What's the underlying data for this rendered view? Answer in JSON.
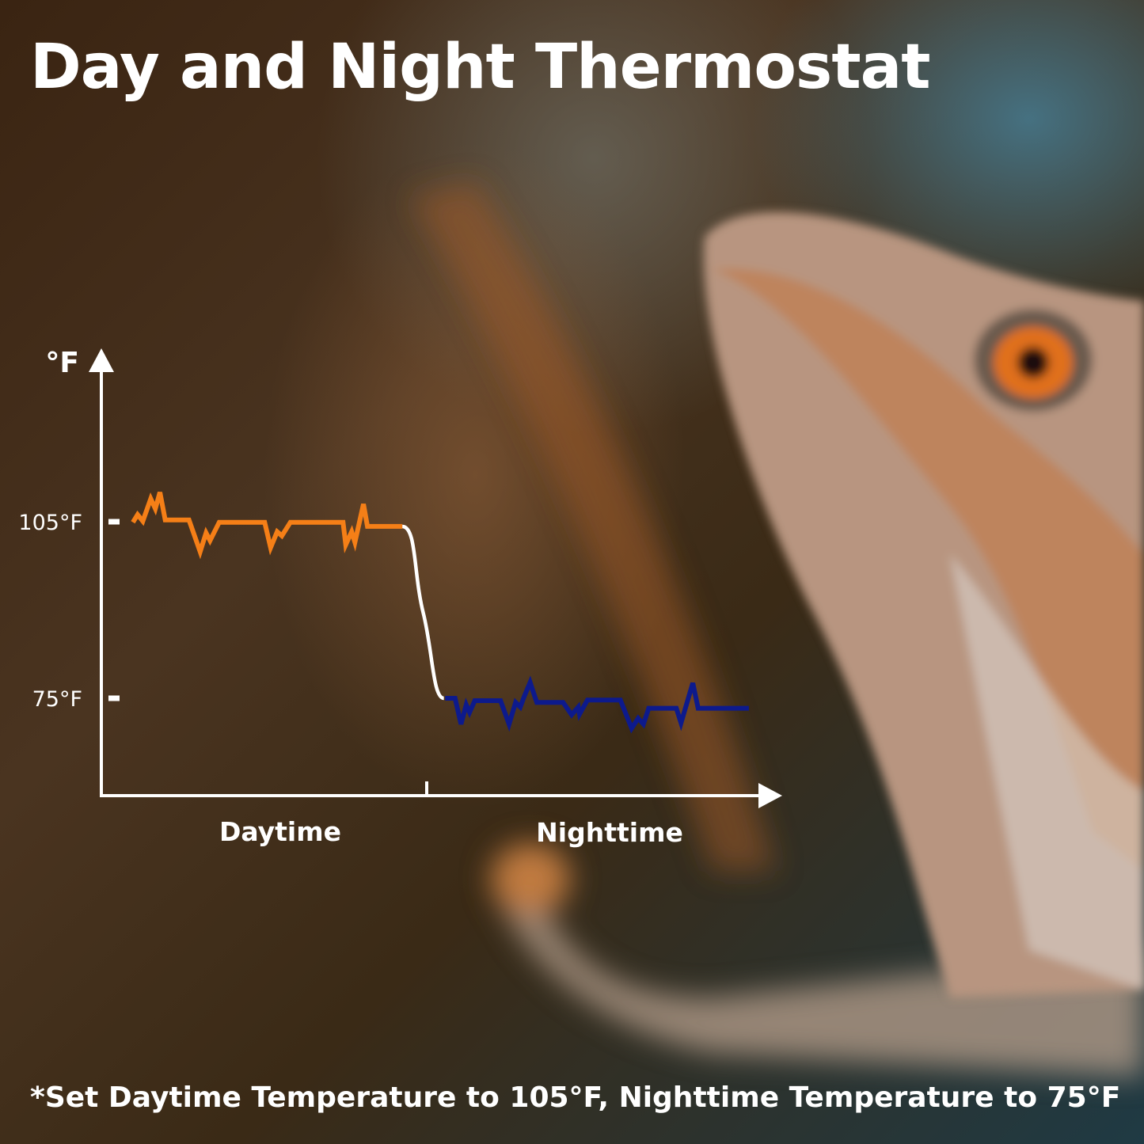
{
  "title": "Day and Night Thermostat",
  "footnote": "*Set Daytime Temperature to 105°F, Nighttime Temperature to 75°F",
  "chart_data": {
    "type": "line",
    "title": "",
    "ylabel": "°F",
    "xlabel": "",
    "y_ticks": [
      {
        "value": 105,
        "label": "105°F"
      },
      {
        "value": 75,
        "label": "75°F"
      }
    ],
    "x_categories": [
      "Daytime",
      "Nighttime"
    ],
    "ylim": [
      58,
      130
    ],
    "xlim": [
      0,
      100
    ],
    "grid": false,
    "colors": {
      "day": "#f57f17",
      "transition": "#ffffff",
      "night": "#0d1a8c",
      "axis": "#ffffff"
    },
    "series": [
      {
        "key": "day",
        "x": [
          4.8,
          5.5,
          6.3,
          7.5,
          8.2,
          8.9,
          9.7,
          13.3,
          15.0,
          15.9,
          16.5,
          17.9,
          24.8,
          25.7,
          26.7,
          27.4,
          28.7,
          36.7,
          37.1,
          38.0,
          38.5,
          39.8,
          40.4,
          45.7
        ],
        "y": [
          104.9,
          106.2,
          105.1,
          108.9,
          107.2,
          110.0,
          105.3,
          105.3,
          99.9,
          103.1,
          101.8,
          104.9,
          104.9,
          100.6,
          103.3,
          102.6,
          104.9,
          104.9,
          101.1,
          103.3,
          101.5,
          108.0,
          104.2,
          104.2
        ]
      },
      {
        "key": "transition",
        "x": [
          45.7,
          52.0
        ],
        "y": [
          104.2,
          75
        ]
      },
      {
        "key": "night",
        "x": [
          52.2,
          53.7,
          54.6,
          55.4,
          55.9,
          56.7,
          60.6,
          61.9,
          62.9,
          63.6,
          64.2,
          65.1,
          66.1,
          70.1,
          71.4,
          72.4,
          72.6,
          73.8,
          78.8,
          80.5,
          81.5,
          82.3,
          83.1,
          87.3,
          88.0,
          89.8,
          90.6,
          98.3
        ],
        "y": [
          75,
          75,
          70.6,
          73.9,
          72.6,
          74.6,
          74.6,
          70.6,
          74.3,
          73.5,
          75.3,
          77.7,
          74.3,
          74.3,
          72.2,
          73.5,
          72.3,
          74.7,
          74.7,
          69.9,
          71.6,
          70.6,
          73.3,
          73.3,
          70.8,
          77.6,
          73.3,
          73.3
        ]
      }
    ],
    "x_divider": 49.4
  }
}
